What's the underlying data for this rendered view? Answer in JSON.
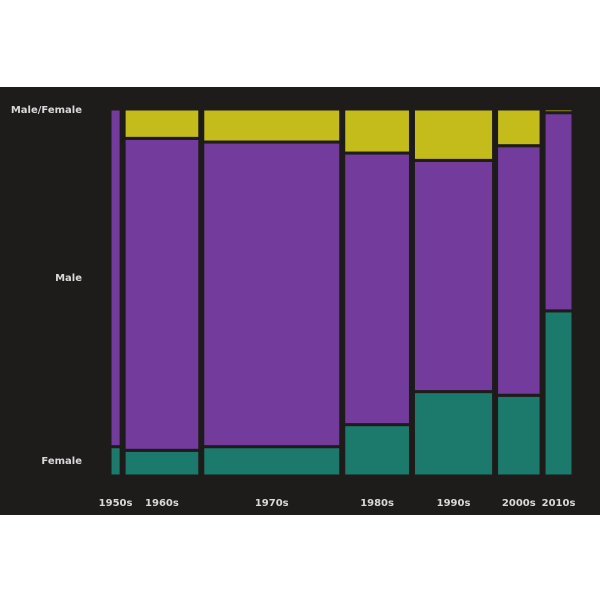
{
  "chart_data": {
    "type": "mosaic",
    "x_categories": [
      "1950s",
      "1960s",
      "1970s",
      "1980s",
      "1990s",
      "2000s",
      "2010s"
    ],
    "x_shares": [
      0.025,
      0.17,
      0.31,
      0.15,
      0.18,
      0.1,
      0.065
    ],
    "y_categories": [
      "Female",
      "Male",
      "Male/Female"
    ],
    "colors": {
      "Female": "#1b7a6b",
      "Male": "#733b9b",
      "Male/Female": "#c4bc1b"
    },
    "proportions": [
      [
        0.08,
        0.92,
        0.0
      ],
      [
        0.07,
        0.85,
        0.08
      ],
      [
        0.08,
        0.83,
        0.09
      ],
      [
        0.14,
        0.74,
        0.12
      ],
      [
        0.23,
        0.63,
        0.14
      ],
      [
        0.22,
        0.68,
        0.1
      ],
      [
        0.45,
        0.54,
        0.01
      ]
    ],
    "background": "#1e1b1b"
  }
}
